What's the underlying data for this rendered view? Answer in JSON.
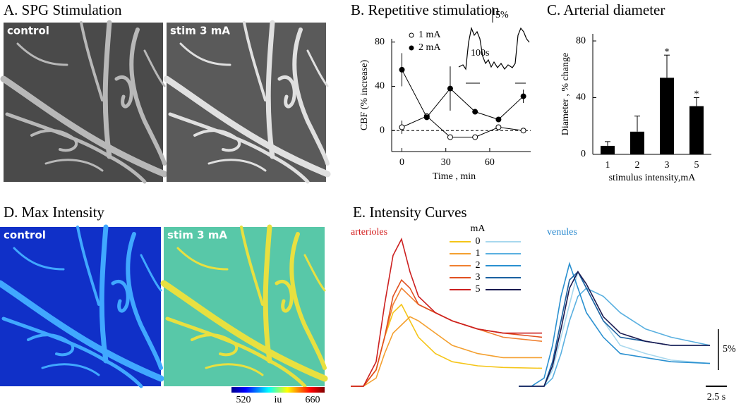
{
  "panels": {
    "a": {
      "title": "A. SPG Stimulation",
      "labels": [
        "control",
        "stim 3 mA"
      ]
    },
    "d": {
      "title": "D. Max Intensity",
      "labels": [
        "control",
        "stim 3 mA"
      ],
      "colorbar": {
        "min": 520,
        "unit": "iu",
        "max": 660
      }
    }
  },
  "chart_data": [
    {
      "type": "line",
      "title": "B. Repetitive stimulation",
      "xlabel": "Time , min",
      "ylabel": "CBF (% increase)",
      "x": [
        0,
        17,
        33,
        50,
        66,
        83
      ],
      "series": [
        {
          "name": "1 mA",
          "marker": "open",
          "color": "#000000",
          "values": [
            3,
            13,
            -6,
            -6,
            3,
            0
          ],
          "errors": [
            6,
            0,
            0,
            0,
            0,
            0
          ]
        },
        {
          "name": "2 mA",
          "marker": "filled",
          "color": "#000000",
          "values": [
            55,
            12,
            38,
            17,
            10,
            31
          ],
          "errors": [
            15,
            0,
            20,
            0,
            0,
            6
          ]
        }
      ],
      "xlim": [
        -7,
        88
      ],
      "ylim": [
        -19,
        83
      ],
      "xticks": [
        0,
        30,
        60
      ],
      "yticks": [
        0,
        40,
        80
      ],
      "hline": 0,
      "legend": "top-left",
      "annotations": [
        "5%",
        "100s"
      ]
    },
    {
      "type": "bar",
      "title": "C. Arterial diameter",
      "xlabel": "stimulus intensity,mA",
      "ylabel": "Diameter , % change",
      "categories": [
        "1",
        "2",
        "3",
        "5"
      ],
      "values": [
        6,
        16,
        54,
        34
      ],
      "errors": [
        3,
        11,
        16,
        6
      ],
      "annotations": [
        null,
        null,
        "*",
        "*"
      ],
      "color": "#000000",
      "ylim": [
        0,
        85
      ],
      "yticks": [
        0,
        40,
        80
      ]
    },
    {
      "type": "curves",
      "title": "E. Intensity Curves",
      "legend_title": "mA",
      "x": [
        0,
        1.5,
        3,
        4,
        5,
        6,
        7,
        8,
        10,
        12,
        15,
        18,
        22.6
      ],
      "xlim": [
        0,
        22.6
      ],
      "ylim": [
        0,
        19
      ],
      "groups": [
        {
          "name": "arterioles",
          "color": "#d42020",
          "series": [
            {
              "name": "0",
              "color": "#f5c518",
              "values": [
                0,
                0,
                2,
                6,
                9,
                10,
                8,
                6,
                4,
                3,
                2.5,
                2.3,
                2.2
              ]
            },
            {
              "name": "1",
              "color": "#f4a030",
              "values": [
                0,
                0,
                1,
                4,
                6.5,
                7.5,
                8.5,
                8,
                6.5,
                5,
                4,
                3.5,
                3.5
              ]
            },
            {
              "name": "2",
              "color": "#f08030",
              "values": [
                0,
                0,
                2,
                6,
                10,
                12,
                11,
                10,
                9,
                8,
                7,
                6,
                5.5
              ]
            },
            {
              "name": "3",
              "color": "#e05020",
              "values": [
                0,
                0,
                2,
                6,
                11,
                13,
                12,
                10,
                9,
                8,
                7,
                6.5,
                6
              ]
            },
            {
              "name": "5",
              "color": "#cc2020",
              "values": [
                0,
                0,
                3,
                10,
                16,
                18,
                14,
                11,
                9,
                8,
                7,
                6.5,
                6.5
              ]
            }
          ]
        },
        {
          "name": "venules",
          "color": "#2a8ad0",
          "series": [
            {
              "color": "#a8d8ee",
              "values": [
                0,
                0,
                0,
                2,
                6,
                10,
                14,
                12,
                8,
                5,
                4,
                3.2,
                2.8
              ]
            },
            {
              "color": "#5ab0e0",
              "values": [
                0,
                0,
                0,
                1,
                4,
                8,
                11,
                12,
                11,
                9,
                7,
                6,
                5
              ]
            },
            {
              "color": "#2a90d0",
              "values": [
                0,
                0,
                1,
                5,
                11,
                15,
                12,
                9,
                6,
                4,
                3.5,
                3,
                2.8
              ]
            },
            {
              "color": "#1a60a0",
              "values": [
                0,
                0,
                0,
                3,
                8,
                13,
                14,
                12,
                8,
                6,
                5.5,
                5,
                5
              ]
            },
            {
              "color": "#1a1a50",
              "values": [
                0,
                0,
                0,
                2.5,
                7,
                12,
                14,
                12.5,
                8.5,
                6.5,
                5.5,
                5,
                5
              ]
            }
          ]
        }
      ],
      "scale_bars": {
        "y": {
          "value": 5,
          "label": "5%"
        },
        "x": {
          "value": 2.5,
          "label": "2.5 s"
        }
      }
    }
  ]
}
